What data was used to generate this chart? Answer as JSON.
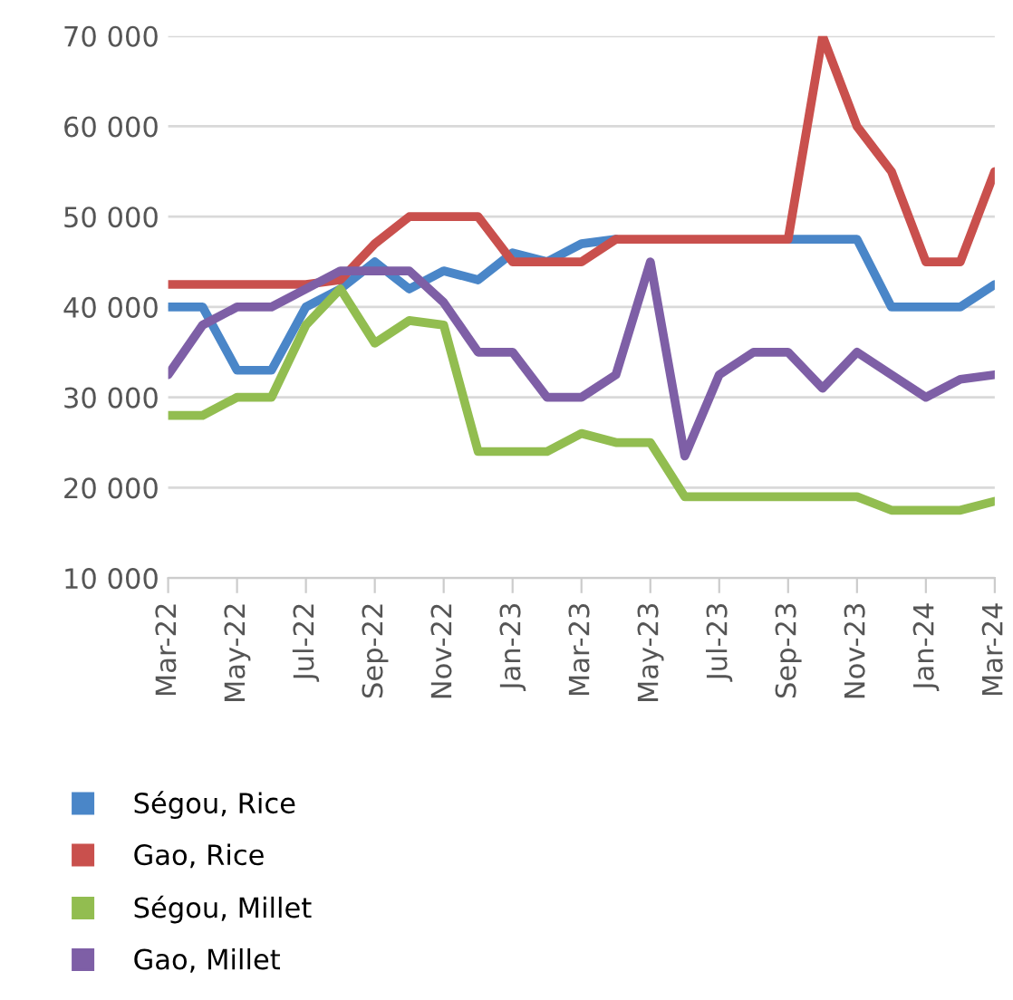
{
  "chart_data": {
    "type": "line",
    "categories": [
      "Mar-22",
      null,
      "May-22",
      null,
      "Jul-22",
      null,
      "Sep-22",
      null,
      "Nov-22",
      null,
      "Jan-23",
      null,
      "Mar-23",
      null,
      "May-23",
      null,
      "Jul-23",
      null,
      "Sep-23",
      null,
      "Nov-23",
      null,
      "Jan-24",
      null,
      "Mar-24"
    ],
    "series": [
      {
        "name": "Ségou, Rice",
        "color": "#4a86c8",
        "values": [
          40000,
          40000,
          33000,
          33000,
          40000,
          42000,
          45000,
          42000,
          44000,
          43000,
          46000,
          45000,
          47000,
          47500,
          null,
          null,
          null,
          null,
          47500,
          47500,
          47500,
          40000,
          40000,
          40000,
          42500
        ]
      },
      {
        "name": "Gao, Rice",
        "color": "#c9504d",
        "values": [
          42500,
          42500,
          42500,
          42500,
          42500,
          43000,
          47000,
          50000,
          50000,
          50000,
          45000,
          45000,
          45000,
          47500,
          47500,
          47500,
          47500,
          47500,
          47500,
          70000,
          60000,
          55000,
          45000,
          45000,
          55000
        ]
      },
      {
        "name": "Ségou, Millet",
        "color": "#92bd50",
        "values": [
          28000,
          28000,
          30000,
          30000,
          38000,
          42000,
          36000,
          38500,
          38000,
          24000,
          24000,
          24000,
          26000,
          25000,
          25000,
          19000,
          19000,
          19000,
          19000,
          19000,
          19000,
          17500,
          17500,
          17500,
          18500
        ]
      },
      {
        "name": "Gao, Millet",
        "color": "#7e5fa6",
        "values": [
          32500,
          38000,
          40000,
          40000,
          42000,
          44000,
          44000,
          44000,
          40500,
          35000,
          35000,
          30000,
          30000,
          32500,
          45000,
          23500,
          32500,
          35000,
          35000,
          31000,
          35000,
          32500,
          30000,
          32000,
          32500
        ]
      }
    ],
    "ylim": [
      10000,
      70000
    ],
    "yticks": [
      {
        "value": 10000,
        "label": "10 000"
      },
      {
        "value": 20000,
        "label": "20 000"
      },
      {
        "value": 30000,
        "label": "30 000"
      },
      {
        "value": 40000,
        "label": "40 000"
      },
      {
        "value": 50000,
        "label": "50 000"
      },
      {
        "value": 60000,
        "label": "60 000"
      },
      {
        "value": 70000,
        "label": "70 000"
      }
    ],
    "grid": "y",
    "legend": "bottom",
    "marker": "none",
    "line_style": "solid"
  }
}
